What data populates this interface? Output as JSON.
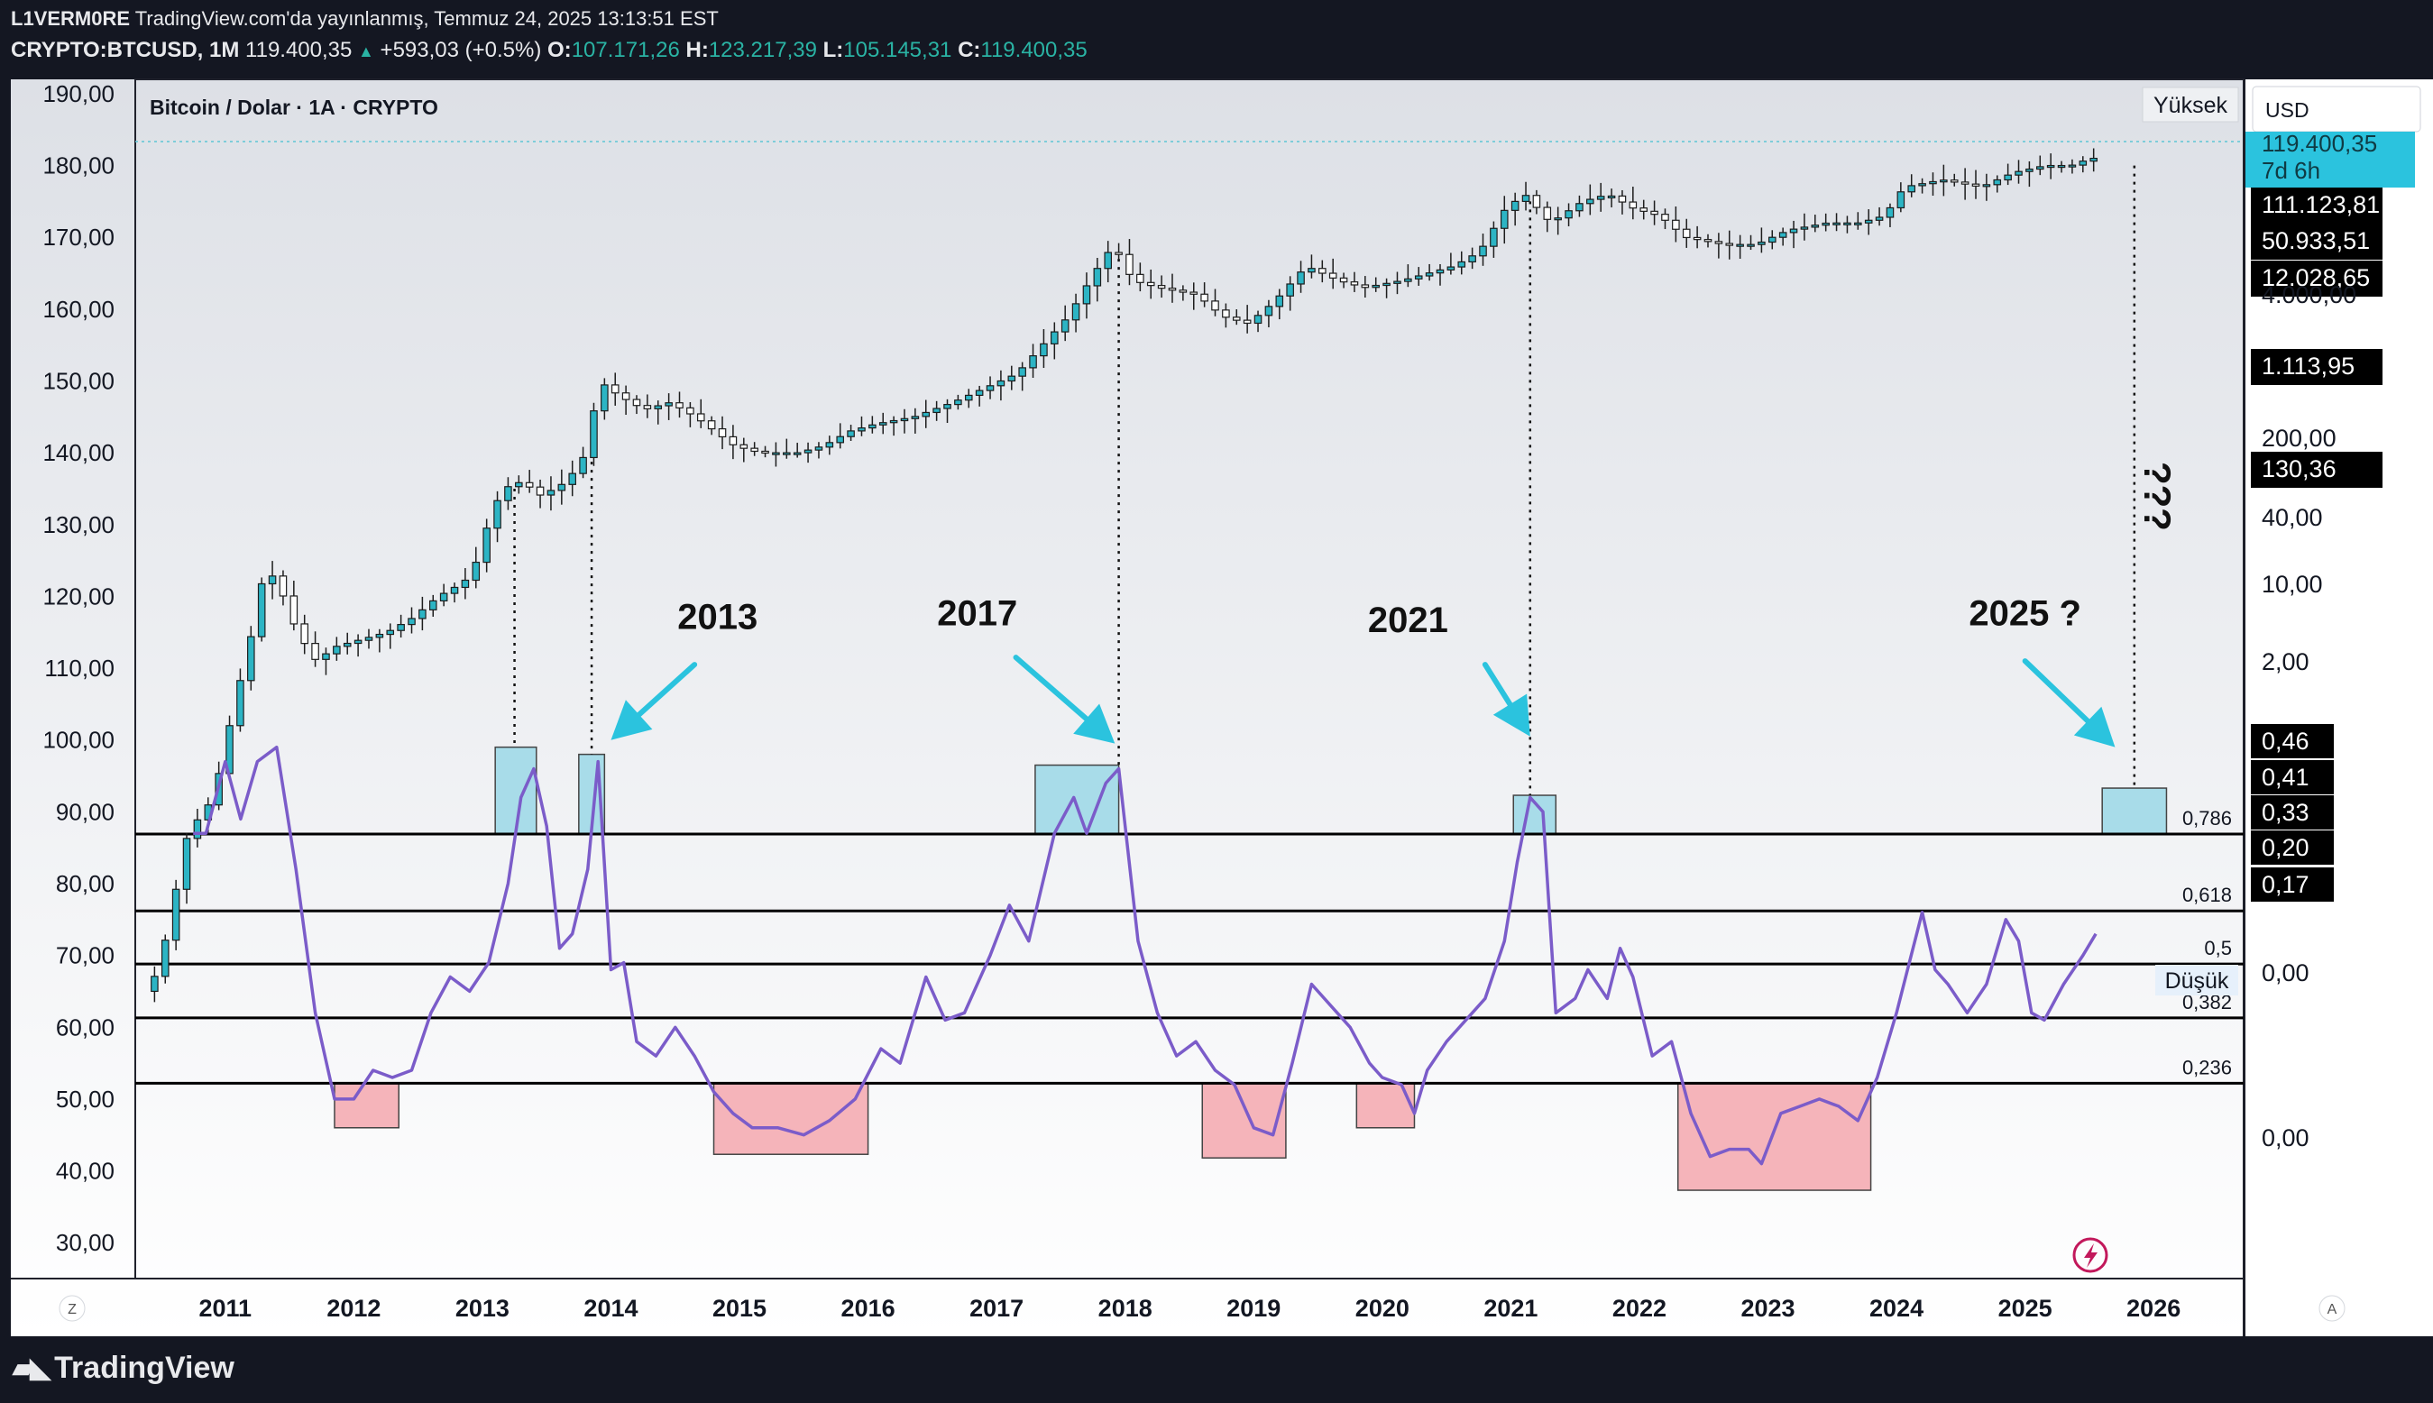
{
  "header": {
    "author": "L1VERM0RE",
    "published": "TradingView.com'da yayınlanmış, Temmuz 24, 2025 13:13:51 EST",
    "symbol": "CRYPTO:BTCUSD, 1M",
    "price": "119.400,35",
    "change_arrow": "▲",
    "change": "+593,03 (+0.5%)",
    "o_label": "O:",
    "o_value": "107.171,26",
    "h_label": "H:",
    "h_value": "123.217,39",
    "l_label": "L:",
    "l_value": "105.145,31",
    "c_label": "C:",
    "c_value": "119.400,35"
  },
  "chart_title": "Bitcoin / Dolar · 1A · CRYPTO",
  "right_panel": {
    "currency": "USD",
    "high_btn": "Yüksek",
    "low_btn": "Düşük",
    "price_tag": "119.400,35",
    "countdown": "7d 6h",
    "tags": [
      "111.123,81",
      "50.933,51",
      "12.028,65",
      "1.113,95",
      "130,36"
    ],
    "osc_tags": [
      "0,46",
      "0,41",
      "0,33",
      "0,20",
      "0,17"
    ],
    "log_ticks": [
      "4.000,00",
      "200,00",
      "40,00",
      "10,00",
      "2,00",
      "0,00",
      "0,00"
    ],
    "auto_label": "A",
    "colors": {
      "price_tag": "#2bc3de",
      "tag_bg": "#000000"
    }
  },
  "bottom_left": "Z",
  "footer": {
    "logo": "TradingView",
    "icon": "tradingview-logo-icon"
  },
  "annotations": {
    "labels": [
      "2013",
      "2017",
      "2021",
      "2025 ?"
    ],
    "question": "???",
    "fib_labels": [
      "0,786",
      "0,618",
      "0,5",
      "0,382",
      "0,236"
    ],
    "colors": {
      "cyan": "#2bc3de",
      "box_blue": "#a8dce9",
      "box_red": "#f5b4ba",
      "oscillator": "#7b5cc9"
    }
  },
  "chart_data": {
    "type": "candlestick",
    "title": "Bitcoin / Dolar · 1A · CRYPTO",
    "y_axis_ticks": [
      30,
      40,
      50,
      60,
      70,
      80,
      90,
      100,
      110,
      120,
      130,
      140,
      150,
      160,
      170,
      180,
      190
    ],
    "y_axis_labels": [
      "30,00",
      "40,00",
      "50,00",
      "60,00",
      "70,00",
      "80,00",
      "90,00",
      "100,00",
      "110,00",
      "120,00",
      "130,00",
      "140,00",
      "150,00",
      "160,00",
      "170,00",
      "180,00",
      "190,00"
    ],
    "x_axis_labels": [
      "2011",
      "2012",
      "2013",
      "2014",
      "2015",
      "2016",
      "2017",
      "2018",
      "2019",
      "2020",
      "2021",
      "2022",
      "2023",
      "2024",
      "2025",
      "2026"
    ],
    "x_range": [
      2010.3,
      2026.7
    ],
    "ylim": [
      25,
      192
    ],
    "price_anchors": [
      [
        2010.45,
        65
      ],
      [
        2010.55,
        70
      ],
      [
        2010.75,
        87
      ],
      [
        2010.95,
        92
      ],
      [
        2011.1,
        104
      ],
      [
        2011.25,
        115
      ],
      [
        2011.35,
        124
      ],
      [
        2011.45,
        122
      ],
      [
        2011.6,
        115
      ],
      [
        2011.75,
        111
      ],
      [
        2011.9,
        113
      ],
      [
        2012.1,
        114
      ],
      [
        2012.3,
        115
      ],
      [
        2012.5,
        117
      ],
      [
        2012.7,
        120
      ],
      [
        2012.9,
        122
      ],
      [
        2013.0,
        125
      ],
      [
        2013.1,
        131
      ],
      [
        2013.2,
        135
      ],
      [
        2013.35,
        136
      ],
      [
        2013.5,
        134
      ],
      [
        2013.7,
        136
      ],
      [
        2013.85,
        140
      ],
      [
        2013.95,
        150
      ],
      [
        2014.1,
        148
      ],
      [
        2014.3,
        146
      ],
      [
        2014.5,
        147
      ],
      [
        2014.7,
        145
      ],
      [
        2014.85,
        143
      ],
      [
        2015.0,
        141
      ],
      [
        2015.2,
        140
      ],
      [
        2015.5,
        140
      ],
      [
        2015.7,
        141
      ],
      [
        2015.9,
        143
      ],
      [
        2016.1,
        144
      ],
      [
        2016.4,
        145
      ],
      [
        2016.7,
        147
      ],
      [
        2016.95,
        149
      ],
      [
        2017.2,
        151
      ],
      [
        2017.4,
        155
      ],
      [
        2017.6,
        159
      ],
      [
        2017.8,
        165
      ],
      [
        2017.95,
        169
      ],
      [
        2018.1,
        164
      ],
      [
        2018.3,
        163
      ],
      [
        2018.6,
        162
      ],
      [
        2018.8,
        159
      ],
      [
        2019.0,
        158
      ],
      [
        2019.2,
        161
      ],
      [
        2019.45,
        166
      ],
      [
        2019.7,
        164
      ],
      [
        2019.9,
        163
      ],
      [
        2020.2,
        164
      ],
      [
        2020.4,
        165
      ],
      [
        2020.6,
        166
      ],
      [
        2020.8,
        168
      ],
      [
        2021.0,
        174
      ],
      [
        2021.15,
        176
      ],
      [
        2021.35,
        172
      ],
      [
        2021.6,
        175
      ],
      [
        2021.8,
        176
      ],
      [
        2022.0,
        174
      ],
      [
        2022.2,
        173
      ],
      [
        2022.4,
        170
      ],
      [
        2022.7,
        169
      ],
      [
        2022.95,
        169
      ],
      [
        2023.2,
        171
      ],
      [
        2023.5,
        172
      ],
      [
        2023.75,
        172
      ],
      [
        2023.95,
        173
      ],
      [
        2024.1,
        177
      ],
      [
        2024.4,
        178
      ],
      [
        2024.7,
        177
      ],
      [
        2024.95,
        179
      ],
      [
        2025.2,
        180
      ],
      [
        2025.4,
        180
      ],
      [
        2025.55,
        181
      ]
    ],
    "oscillator_series": {
      "name": "",
      "points": [
        [
          2010.75,
          87
        ],
        [
          2010.85,
          87
        ],
        [
          2011.0,
          97
        ],
        [
          2011.12,
          89
        ],
        [
          2011.25,
          97
        ],
        [
          2011.4,
          99
        ],
        [
          2011.55,
          82
        ],
        [
          2011.7,
          62
        ],
        [
          2011.85,
          50
        ],
        [
          2012.0,
          50
        ],
        [
          2012.15,
          54
        ],
        [
          2012.3,
          53
        ],
        [
          2012.45,
          54
        ],
        [
          2012.6,
          62
        ],
        [
          2012.75,
          67
        ],
        [
          2012.9,
          65
        ],
        [
          2013.05,
          69
        ],
        [
          2013.2,
          80
        ],
        [
          2013.3,
          92
        ],
        [
          2013.4,
          96
        ],
        [
          2013.5,
          88
        ],
        [
          2013.6,
          71
        ],
        [
          2013.7,
          73
        ],
        [
          2013.82,
          82
        ],
        [
          2013.9,
          97
        ],
        [
          2014.0,
          68
        ],
        [
          2014.1,
          69
        ],
        [
          2014.2,
          58
        ],
        [
          2014.35,
          56
        ],
        [
          2014.5,
          60
        ],
        [
          2014.65,
          56
        ],
        [
          2014.8,
          51
        ],
        [
          2014.95,
          48
        ],
        [
          2015.1,
          46
        ],
        [
          2015.3,
          46
        ],
        [
          2015.5,
          45
        ],
        [
          2015.7,
          47
        ],
        [
          2015.9,
          50
        ],
        [
          2016.1,
          57
        ],
        [
          2016.25,
          55
        ],
        [
          2016.45,
          67
        ],
        [
          2016.6,
          61
        ],
        [
          2016.75,
          62
        ],
        [
          2016.95,
          70
        ],
        [
          2017.1,
          77
        ],
        [
          2017.25,
          72
        ],
        [
          2017.45,
          87
        ],
        [
          2017.6,
          92
        ],
        [
          2017.7,
          87
        ],
        [
          2017.85,
          94
        ],
        [
          2017.95,
          96
        ],
        [
          2018.1,
          72
        ],
        [
          2018.25,
          62
        ],
        [
          2018.4,
          56
        ],
        [
          2018.55,
          58
        ],
        [
          2018.7,
          54
        ],
        [
          2018.85,
          52
        ],
        [
          2019.0,
          46
        ],
        [
          2019.15,
          45
        ],
        [
          2019.3,
          55
        ],
        [
          2019.45,
          66
        ],
        [
          2019.6,
          63
        ],
        [
          2019.75,
          60
        ],
        [
          2019.9,
          55
        ],
        [
          2020.0,
          53
        ],
        [
          2020.15,
          52
        ],
        [
          2020.25,
          48
        ],
        [
          2020.35,
          54
        ],
        [
          2020.5,
          58
        ],
        [
          2020.65,
          61
        ],
        [
          2020.8,
          64
        ],
        [
          2020.95,
          72
        ],
        [
          2021.05,
          83
        ],
        [
          2021.15,
          92
        ],
        [
          2021.25,
          90
        ],
        [
          2021.35,
          62
        ],
        [
          2021.5,
          64
        ],
        [
          2021.6,
          68
        ],
        [
          2021.75,
          64
        ],
        [
          2021.85,
          71
        ],
        [
          2021.95,
          67
        ],
        [
          2022.1,
          56
        ],
        [
          2022.25,
          58
        ],
        [
          2022.4,
          48
        ],
        [
          2022.55,
          42
        ],
        [
          2022.7,
          43
        ],
        [
          2022.85,
          43
        ],
        [
          2022.95,
          41
        ],
        [
          2023.1,
          48
        ],
        [
          2023.25,
          49
        ],
        [
          2023.4,
          50
        ],
        [
          2023.55,
          49
        ],
        [
          2023.7,
          47
        ],
        [
          2023.85,
          53
        ],
        [
          2024.0,
          62
        ],
        [
          2024.1,
          69
        ],
        [
          2024.2,
          76
        ],
        [
          2024.3,
          68
        ],
        [
          2024.4,
          66
        ],
        [
          2024.55,
          62
        ],
        [
          2024.7,
          66
        ],
        [
          2024.85,
          75
        ],
        [
          2024.95,
          72
        ],
        [
          2025.05,
          62
        ],
        [
          2025.15,
          61
        ],
        [
          2025.3,
          66
        ],
        [
          2025.45,
          70
        ],
        [
          2025.55,
          73
        ]
      ]
    },
    "fib_levels": [
      {
        "label": "0,786",
        "y": 86.9
      },
      {
        "label": "0,618",
        "y": 76.2
      },
      {
        "label": "0,5",
        "y": 68.8
      },
      {
        "label": "0,382",
        "y": 61.3
      },
      {
        "label": "0,236",
        "y": 52.2
      }
    ],
    "highlight_boxes": [
      {
        "color": "blue",
        "x0": 2013.1,
        "x1": 2013.42,
        "y0": 86.9,
        "y1": 99
      },
      {
        "color": "blue",
        "x0": 2013.75,
        "x1": 2013.95,
        "y0": 86.9,
        "y1": 98
      },
      {
        "color": "blue",
        "x0": 2017.3,
        "x1": 2017.95,
        "y0": 86.9,
        "y1": 96.5
      },
      {
        "color": "blue",
        "x0": 2021.02,
        "x1": 2021.35,
        "y0": 86.9,
        "y1": 92.3
      },
      {
        "color": "blue",
        "x0": 2025.6,
        "x1": 2026.1,
        "y0": 86.9,
        "y1": 93.3
      },
      {
        "color": "red",
        "x0": 2011.85,
        "x1": 2012.35,
        "y0": 46,
        "y1": 52.2
      },
      {
        "color": "red",
        "x0": 2014.8,
        "x1": 2016.0,
        "y0": 42.3,
        "y1": 52.2
      },
      {
        "color": "red",
        "x0": 2018.6,
        "x1": 2019.25,
        "y0": 41.8,
        "y1": 52.2
      },
      {
        "color": "red",
        "x0": 2019.8,
        "x1": 2020.25,
        "y0": 46,
        "y1": 52.2
      },
      {
        "color": "red",
        "x0": 2022.3,
        "x1": 2023.8,
        "y0": 37.3,
        "y1": 52.2
      }
    ],
    "peak_dashed_lines": [
      {
        "x": 2013.25,
        "y_top": 135,
        "y_bottom": 99
      },
      {
        "x": 2013.85,
        "y_top": 141,
        "y_bottom": 98
      },
      {
        "x": 2017.95,
        "y_top": 167,
        "y_bottom": 96.5
      },
      {
        "x": 2021.15,
        "y_top": 175,
        "y_bottom": 92.3
      },
      {
        "x": 2025.85,
        "y_top": 180,
        "y_bottom": 93.3
      }
    ],
    "arrows": [
      {
        "label": "2013",
        "from": [
          2014.65,
          110.5
        ],
        "to": [
          2014.0,
          100
        ]
      },
      {
        "label": "2017",
        "from": [
          2017.15,
          111.5
        ],
        "to": [
          2017.92,
          99.5
        ]
      },
      {
        "label": "2021",
        "from": [
          2020.8,
          110.5
        ],
        "to": [
          2021.15,
          100.5
        ]
      },
      {
        "label": "2025 ?",
        "from": [
          2025.0,
          111
        ],
        "to": [
          2025.7,
          99
        ]
      }
    ],
    "label_positions": [
      {
        "label": "2013",
        "x": 2014.83,
        "y": 115.5
      },
      {
        "label": "2017",
        "x": 2016.85,
        "y": 116
      },
      {
        "label": "2021",
        "x": 2020.2,
        "y": 115
      },
      {
        "label": "2025 ?",
        "x": 2025.0,
        "y": 116
      }
    ],
    "grid": false
  }
}
